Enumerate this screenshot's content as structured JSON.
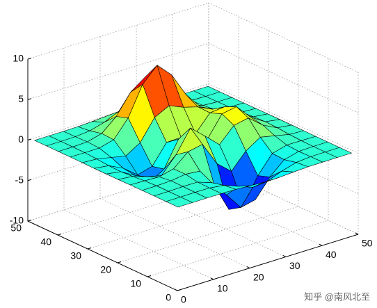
{
  "chart_data": {
    "type": "surface",
    "x": [
      1,
      5,
      9,
      13,
      17,
      21,
      25,
      29,
      33,
      37,
      41,
      45,
      49
    ],
    "y": [
      1,
      5,
      9,
      13,
      17,
      21,
      25,
      29,
      33,
      37,
      41,
      45,
      49
    ],
    "z": [
      [
        0,
        0,
        0,
        0,
        -0.03,
        -0.14,
        -0.24,
        -0.22,
        -0.11,
        -0.03,
        -0.01,
        0,
        0
      ],
      [
        0,
        0,
        0.02,
        0,
        -0.23,
        -0.91,
        -1.57,
        -1.41,
        -0.69,
        -0.18,
        -0.03,
        0,
        0
      ],
      [
        0,
        0.01,
        0.05,
        0.05,
        -0.59,
        -2.63,
        -4.75,
        -4.34,
        -2.1,
        -0.53,
        -0.06,
        0,
        0
      ],
      [
        0,
        0.01,
        0.08,
        0.33,
        0.15,
        -2.19,
        -5.68,
        -5.76,
        -2.63,
        -0.44,
        0.04,
        0.03,
        0
      ],
      [
        -0.01,
        -0.06,
        -0.13,
        0.3,
        1.86,
        2.22,
        -0.72,
        -2.22,
        -0.27,
        0.88,
        0.5,
        0.11,
        0.01
      ],
      [
        -0.03,
        -0.2,
        -0.8,
        -1.21,
        0.8,
        3.55,
        2,
        0.39,
        2.2,
        2.56,
        1.12,
        0.24,
        0.03
      ],
      [
        -0.04,
        -0.3,
        -1.33,
        -2.77,
        -1.65,
        1.48,
        0.98,
        0.38,
        2.94,
        3.27,
        1.41,
        0.3,
        0.03
      ],
      [
        -0.03,
        -0.25,
        -1.12,
        -2.49,
        -2,
        0.39,
        0.46,
        0.38,
        2.38,
        2.56,
        1.09,
        0.23,
        0.03
      ],
      [
        -0.01,
        -0.11,
        -0.48,
        -0.86,
        0.23,
        2.79,
        3.69,
        2.94,
        2.43,
        1.58,
        0.58,
        0.11,
        0.01
      ],
      [
        0,
        -0.02,
        -0.01,
        0.47,
        2.61,
        6.2,
        8,
        6.25,
        3.25,
        1.19,
        0.29,
        0.05,
        0
      ],
      [
        0,
        0.01,
        0.08,
        0.55,
        2.1,
        4.55,
        5.85,
        4.56,
        2.21,
        0.68,
        0.13,
        0.02,
        0
      ],
      [
        0,
        0,
        0.03,
        0.19,
        0.69,
        1.47,
        1.89,
        1.47,
        0.7,
        0.21,
        0.04,
        0,
        0
      ],
      [
        0,
        0,
        0,
        0.03,
        0.11,
        0.23,
        0.3,
        0.23,
        0.11,
        0.03,
        0.01,
        0,
        0
      ]
    ],
    "xlim": [
      0,
      50
    ],
    "ylim": [
      0,
      50
    ],
    "zlim": [
      -10,
      10
    ],
    "xticks": [
      0,
      10,
      20,
      30,
      40,
      50
    ],
    "yticks": [
      0,
      10,
      20,
      30,
      40,
      50
    ],
    "zticks": [
      -10,
      -5,
      0,
      5,
      10
    ],
    "colormap": "jet",
    "edge_color": "#000000",
    "grid": true,
    "watermark": "知乎 @南风北至"
  }
}
